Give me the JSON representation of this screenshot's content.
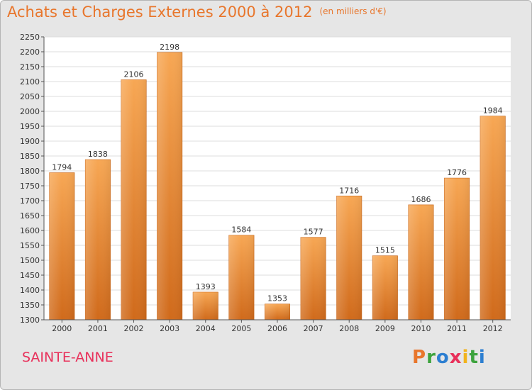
{
  "header": {
    "title": "Achats et Charges Externes 2000 à 2012",
    "unit": "(en milliers d'€)"
  },
  "footer": {
    "commune": "SAINTE-ANNE",
    "brand": "Proxiti"
  },
  "colors": {
    "title": "#e8762c",
    "commune": "#e8315b",
    "bar_top": "#f7a754",
    "bar_bottom": "#d06a1b",
    "plot_bg": "#ffffff",
    "frame_bg": "#e6e6e6",
    "logo": [
      "#e8762c",
      "#3da33d",
      "#2d7fd1",
      "#e8315b",
      "#f1b31c",
      "#3da33d",
      "#2d7fd1"
    ]
  },
  "chart_data": {
    "type": "bar",
    "title": "Achats et Charges Externes 2000 à 2012",
    "subtitle": "(en milliers d'€)",
    "categories": [
      "2000",
      "2001",
      "2002",
      "2003",
      "2004",
      "2005",
      "2006",
      "2007",
      "2008",
      "2009",
      "2010",
      "2011",
      "2012"
    ],
    "values": [
      1794,
      1838,
      2106,
      2198,
      1393,
      1584,
      1353,
      1577,
      1716,
      1515,
      1686,
      1776,
      1984
    ],
    "ylim": [
      1300,
      2250
    ],
    "ytick_step": 50,
    "grid": true
  }
}
